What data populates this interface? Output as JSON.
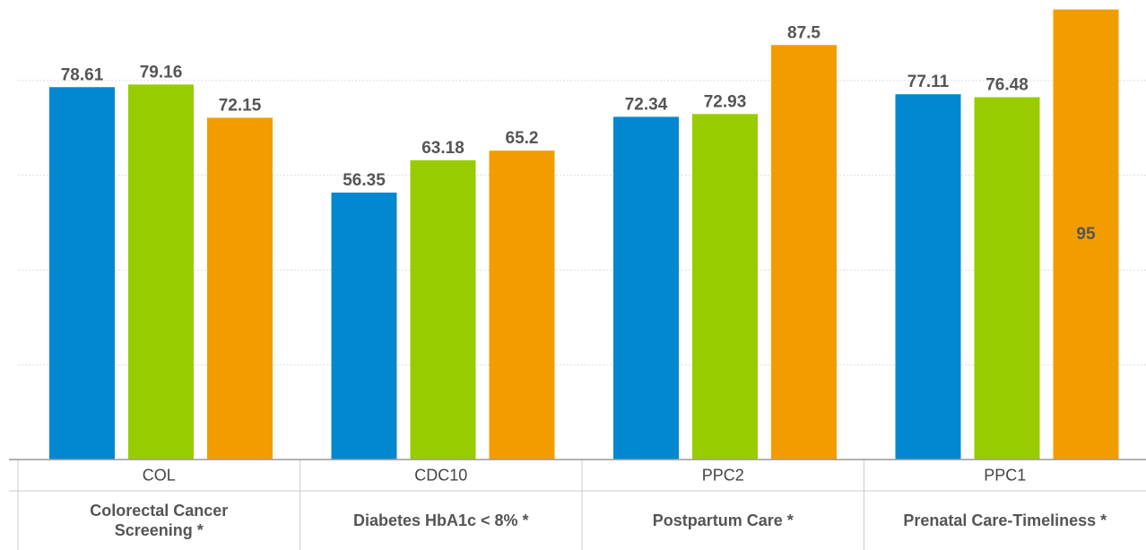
{
  "chart_data": {
    "type": "bar",
    "categories": [
      "COL",
      "CDC10",
      "PPC2",
      "PPC1"
    ],
    "category_descriptions": [
      "Colorectal Cancer Screening *",
      "Diabetes HbA1c  < 8% *",
      "Postpartum Care *",
      "Prenatal Care-Timeliness *"
    ],
    "series": [
      {
        "color": "#0288d1",
        "values": [
          78.61,
          56.35,
          72.34,
          77.11
        ]
      },
      {
        "color": "#99cc00",
        "values": [
          79.16,
          63.18,
          72.93,
          76.48
        ]
      },
      {
        "color": "#f39c00",
        "values": [
          72.15,
          65.2,
          87.5,
          95
        ]
      }
    ],
    "ylim": [
      0,
      97
    ],
    "yticks": [
      20,
      40,
      60,
      80
    ],
    "grid": true
  }
}
